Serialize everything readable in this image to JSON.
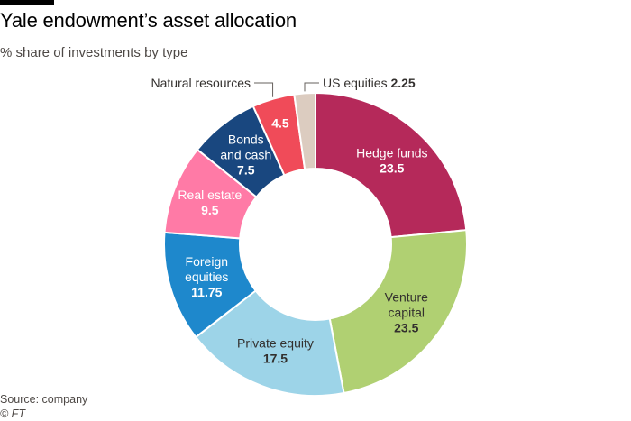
{
  "header": {
    "title": "Yale endowment’s asset allocation",
    "subtitle": "% share of investments by type"
  },
  "footer": {
    "source": "Source: company",
    "credit": "© FT"
  },
  "chart_data": {
    "type": "pie",
    "donut": true,
    "title": "Yale endowment’s asset allocation",
    "subtitle": "% share of investments by type",
    "slices": [
      {
        "label": "Hedge funds",
        "value": 23.5,
        "value_label": "23.5",
        "color": "#b5295a",
        "text_color": "#ffffff",
        "lines": [
          "Hedge funds"
        ]
      },
      {
        "label": "Venture capital",
        "value": 23.5,
        "value_label": "23.5",
        "color": "#b0d072",
        "text_color": "#33302e",
        "lines": [
          "Venture",
          "capital"
        ]
      },
      {
        "label": "Private equity",
        "value": 17.5,
        "value_label": "17.5",
        "color": "#9dd4e8",
        "text_color": "#33302e",
        "lines": [
          "Private equity"
        ]
      },
      {
        "label": "Foreign equities",
        "value": 11.75,
        "value_label": "11.75",
        "color": "#1e88cc",
        "text_color": "#ffffff",
        "lines": [
          "Foreign",
          "equities"
        ]
      },
      {
        "label": "Real estate",
        "value": 9.5,
        "value_label": "9.5",
        "color": "#ff7aa6",
        "text_color": "#ffffff",
        "lines": [
          "Real estate"
        ]
      },
      {
        "label": "Bonds and cash",
        "value": 7.5,
        "value_label": "7.5",
        "color": "#19477f",
        "text_color": "#ffffff",
        "lines": [
          "Bonds",
          "and cash"
        ]
      },
      {
        "label": "Natural resources",
        "value": 4.5,
        "value_label": "4.5",
        "color": "#f04b59",
        "text_color": "#ffffff",
        "lines": [],
        "callout": "Natural resources"
      },
      {
        "label": "US equities",
        "value": 2.25,
        "value_label": "2.25",
        "color": "#dcccc0",
        "text_color": "#33302e",
        "lines": [],
        "callout": "US equities"
      }
    ]
  }
}
